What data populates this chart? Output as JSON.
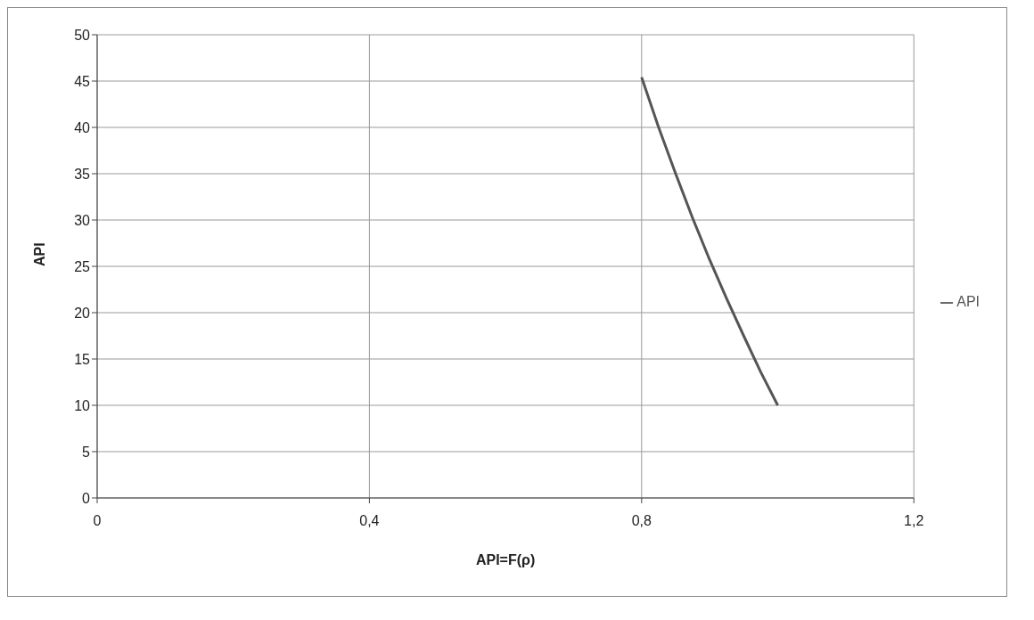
{
  "chart_data": {
    "type": "line",
    "xlabel": "API=F(ρ)",
    "ylabel": "API",
    "series": [
      {
        "name": "API",
        "color": "#555555",
        "x": [
          0.8,
          0.825,
          0.85,
          0.875,
          0.9,
          0.925,
          0.95,
          0.975,
          1.0
        ],
        "values": [
          45.4,
          40.0,
          35.0,
          30.2,
          25.7,
          21.5,
          17.5,
          13.6,
          10.0
        ]
      }
    ],
    "xlim": [
      0,
      1.2
    ],
    "xticks": [
      0,
      {
        "value": 0.4,
        "label": "0,4"
      },
      {
        "value": 0.8,
        "label": "0,8"
      },
      {
        "value": 1.2,
        "label": "1,2"
      }
    ],
    "ylim": [
      0,
      50
    ],
    "yticks": [
      0,
      5,
      10,
      15,
      20,
      25,
      30,
      35,
      40,
      45,
      50
    ],
    "grid": true,
    "legend": "right",
    "marker": "none",
    "line_style": "solid"
  }
}
